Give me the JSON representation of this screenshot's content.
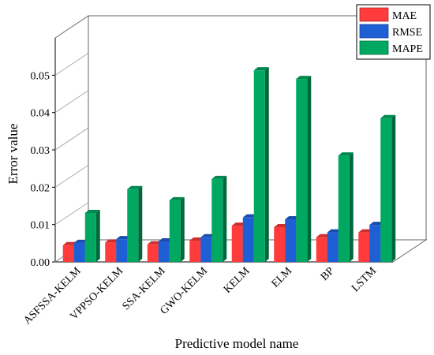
{
  "chart_data": {
    "type": "bar",
    "categories": [
      "ASFSSA-KELM",
      "VPPSO-KELM",
      "SSA-KELM",
      "GWO-KELM",
      "KELM",
      "ELM",
      "BP",
      "LSTM"
    ],
    "series": [
      {
        "name": "MAE",
        "color": "#ff3b3b",
        "values": [
          0.0045,
          0.0052,
          0.0047,
          0.0057,
          0.0097,
          0.0093,
          0.0066,
          0.0079
        ]
      },
      {
        "name": "RMSE",
        "color": "#1f5fd6",
        "values": [
          0.0051,
          0.0061,
          0.0055,
          0.0066,
          0.0119,
          0.0114,
          0.0079,
          0.0099
        ]
      },
      {
        "name": "MAPE",
        "color": "#00a861",
        "values": [
          0.0131,
          0.0195,
          0.0165,
          0.0222,
          0.0513,
          0.049,
          0.0285,
          0.0385
        ]
      }
    ],
    "xlabel": "Predictive model name",
    "ylabel": "Error value",
    "yticks": [
      "0.00",
      "0.01",
      "0.02",
      "0.03",
      "0.04",
      "0.05"
    ],
    "ylim": [
      0,
      0.06
    ],
    "legend_position": "top-right",
    "grid": false
  }
}
